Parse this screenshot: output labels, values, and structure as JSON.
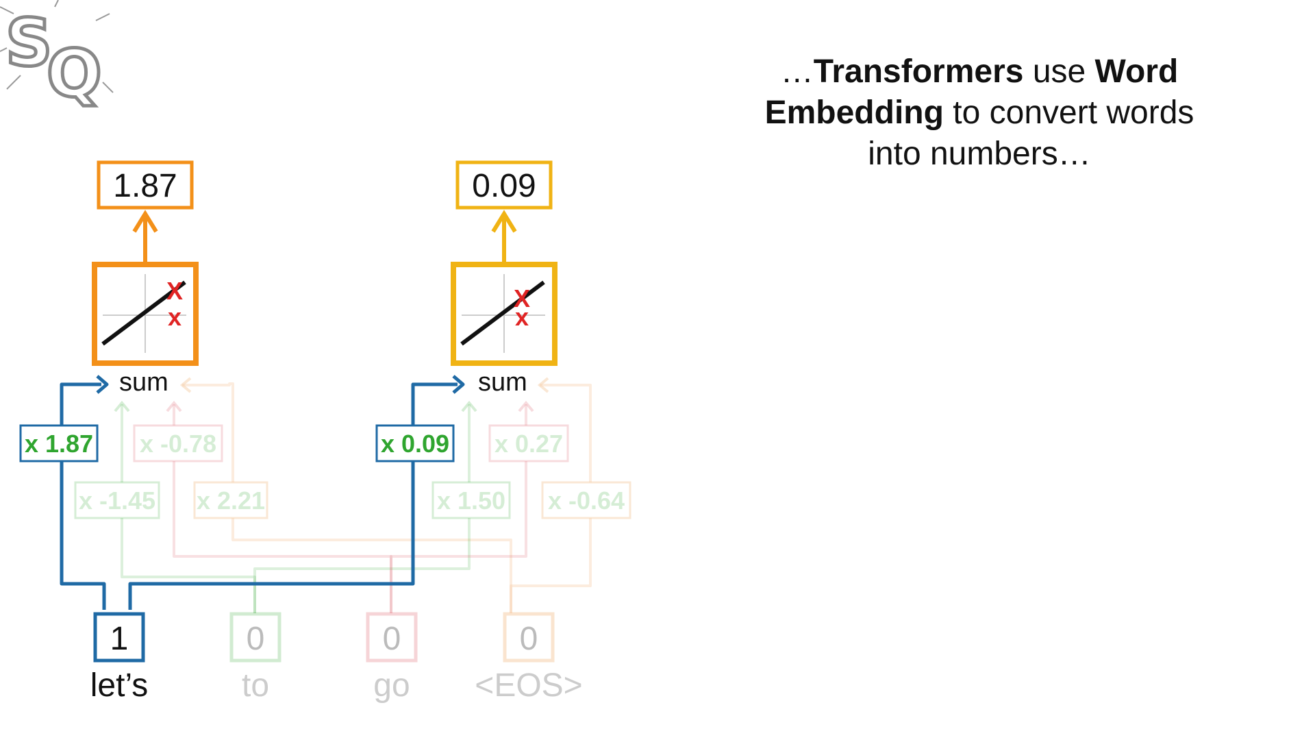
{
  "caption": {
    "prefix": "…",
    "bold1": "Transformers",
    "mid1": " use ",
    "bold2": "Word Embedding",
    "mid2": " to convert words into numbers…"
  },
  "colors": {
    "orange": "#f39019",
    "yellow": "#f0b314",
    "blue": "#1f6aa5",
    "green": "#2fa52f",
    "pink": "#e0707a",
    "peach": "#f5c9a0",
    "red": "#e02424"
  },
  "inputs": [
    {
      "word": "let’s",
      "value": "1"
    },
    {
      "word": "to",
      "value": "0"
    },
    {
      "word": "go",
      "value": "0"
    },
    {
      "word": "<EOS>",
      "value": "0"
    }
  ],
  "nodes": [
    {
      "output": "1.87",
      "sum_label": "sum",
      "weights": [
        "x 1.87",
        "x -1.45",
        "x -0.78",
        "x 2.21"
      ]
    },
    {
      "output": "0.09",
      "sum_label": "sum",
      "weights": [
        "x 0.09",
        "x 1.50",
        "x 0.27",
        "x -0.64"
      ]
    }
  ],
  "icons": {
    "logo": "statquest-logo-icon",
    "activation": "identity-activation-graph-icon"
  }
}
